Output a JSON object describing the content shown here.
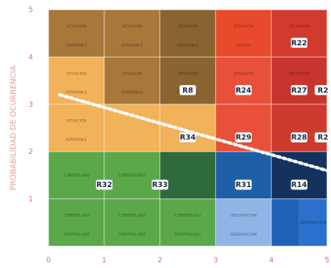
{
  "chart_data": {
    "type": "heatmap",
    "title": "",
    "xlabel": "",
    "ylabel": "PROBABILIDAD DE OCURRENCIA",
    "xlim": [
      0,
      5
    ],
    "ylim": [
      0,
      5
    ],
    "x_ticks": [
      "0",
      "1",
      "2",
      "3",
      "4",
      "5"
    ],
    "y_ticks": [
      "1",
      "2",
      "3",
      "4",
      "5"
    ],
    "grid": true,
    "legend": "none",
    "cells": [
      {
        "x": 0,
        "y": 4,
        "w": 1,
        "h": 1,
        "color": "#a8783a",
        "text": [
          "SITUACION",
          "PERMISIBLE"
        ]
      },
      {
        "x": 1,
        "y": 4,
        "w": 1,
        "h": 1,
        "color": "#a8783a",
        "text": [
          "SITUACION",
          "PERMISIBLE"
        ]
      },
      {
        "x": 2,
        "y": 4,
        "w": 1,
        "h": 1,
        "color": "#8a6430",
        "text": [
          "SITUACION",
          "PERMISIBLE"
        ]
      },
      {
        "x": 3,
        "y": 4,
        "w": 1,
        "h": 1,
        "color": "#e84b2c",
        "text": [
          "SITUACION",
          "CRITICA"
        ]
      },
      {
        "x": 4,
        "y": 4,
        "w": 1,
        "h": 1,
        "color": "#d23a2e",
        "text": [
          "SITUACION",
          "CRITICA"
        ]
      },
      {
        "x": 0,
        "y": 3,
        "w": 1,
        "h": 1,
        "color": "#f2b25a",
        "text": [
          "SITUACION",
          "PERMISIBLE"
        ]
      },
      {
        "x": 1,
        "y": 3,
        "w": 1,
        "h": 1,
        "color": "#a8783a",
        "text": [
          "SITUACION",
          "PERMISIBLE"
        ]
      },
      {
        "x": 2,
        "y": 3,
        "w": 1,
        "h": 1,
        "color": "#8a6430",
        "text": [
          "SITUACION",
          "PERMISIBLE"
        ]
      },
      {
        "x": 3,
        "y": 3,
        "w": 1,
        "h": 1,
        "color": "#e8503a",
        "text": [
          "SITUACION",
          "CRITICA"
        ]
      },
      {
        "x": 4,
        "y": 3,
        "w": 1,
        "h": 1,
        "color": "#c8352e",
        "text": [
          "SITUACION",
          "CRITICA"
        ]
      },
      {
        "x": 0,
        "y": 2,
        "w": 1,
        "h": 1,
        "color": "#f2b25a",
        "text": [
          "SITUACION",
          "PERMISIBLE"
        ]
      },
      {
        "x": 1,
        "y": 2,
        "w": 1,
        "h": 1,
        "color": "#f2b25a",
        "text": []
      },
      {
        "x": 2,
        "y": 2,
        "w": 1,
        "h": 1,
        "color": "#f2b25a",
        "text": []
      },
      {
        "x": 3,
        "y": 2,
        "w": 1,
        "h": 1,
        "color": "#e8503a",
        "text": []
      },
      {
        "x": 4,
        "y": 2,
        "w": 1,
        "h": 1,
        "color": "#cf3a2e",
        "text": []
      },
      {
        "x": 0,
        "y": 1,
        "w": 1,
        "h": 1,
        "color": "#5aa84a",
        "text": [
          "CONTROLADO"
        ]
      },
      {
        "x": 1,
        "y": 1,
        "w": 1,
        "h": 1,
        "color": "#5aa84a",
        "text": [
          "CONTROLADO"
        ]
      },
      {
        "x": 2,
        "y": 1,
        "w": 1,
        "h": 1,
        "color": "#2f6b3a",
        "text": []
      },
      {
        "x": 3,
        "y": 1,
        "w": 1,
        "h": 1,
        "color": "#1f5fa8",
        "text": []
      },
      {
        "x": 4,
        "y": 1,
        "w": 1,
        "h": 1,
        "color": "#14325e",
        "text": []
      },
      {
        "x": 0,
        "y": 0,
        "w": 1,
        "h": 1,
        "color": "#5aa84a",
        "text": [
          "CONTROLADO",
          "CONTROLADO"
        ]
      },
      {
        "x": 1,
        "y": 0,
        "w": 1,
        "h": 1,
        "color": "#5aa84a",
        "text": [
          "CONTROLADO",
          "CONTROLADO"
        ]
      },
      {
        "x": 2,
        "y": 0,
        "w": 1,
        "h": 1,
        "color": "#5aa84a",
        "text": [
          "CONTROLADO",
          "CONTROLADO"
        ]
      },
      {
        "x": 3,
        "y": 0,
        "w": 1,
        "h": 1,
        "color": "#8fb4e6",
        "text": [
          "OBSERVACION",
          "OBSERVACION"
        ]
      },
      {
        "x": 4,
        "y": 0,
        "w": 0.5,
        "h": 1,
        "color": "#1e62b8",
        "text": []
      },
      {
        "x": 4.5,
        "y": 0,
        "w": 0.5,
        "h": 1,
        "color": "#2a70cc",
        "text": [
          "OBSERVACION"
        ]
      }
    ],
    "risks": [
      {
        "id": "R22",
        "x": 4.5,
        "y": 4.3
      },
      {
        "id": "R8",
        "x": 2.5,
        "y": 3.3
      },
      {
        "id": "R24",
        "x": 3.5,
        "y": 3.3
      },
      {
        "id": "R27",
        "x": 4.5,
        "y": 3.3
      },
      {
        "id": "R2",
        "x": 5.0,
        "y": 3.3
      },
      {
        "id": "R34",
        "x": 2.5,
        "y": 2.3
      },
      {
        "id": "R29",
        "x": 3.5,
        "y": 2.3
      },
      {
        "id": "R28",
        "x": 4.5,
        "y": 2.3
      },
      {
        "id": "R2",
        "x": 5.0,
        "y": 2.3
      },
      {
        "id": "R32",
        "x": 1.0,
        "y": 1.3
      },
      {
        "id": "R33",
        "x": 2.0,
        "y": 1.3
      },
      {
        "id": "R31",
        "x": 3.5,
        "y": 1.3
      },
      {
        "id": "R14",
        "x": 4.5,
        "y": 1.3
      }
    ],
    "threshold_line": {
      "from": [
        0.2,
        3.2
      ],
      "to": [
        5.0,
        1.6
      ],
      "color": "#ffffff"
    },
    "colors": {
      "axis_label": "#e4a0a0",
      "tick_label": "#d9706e"
    }
  }
}
